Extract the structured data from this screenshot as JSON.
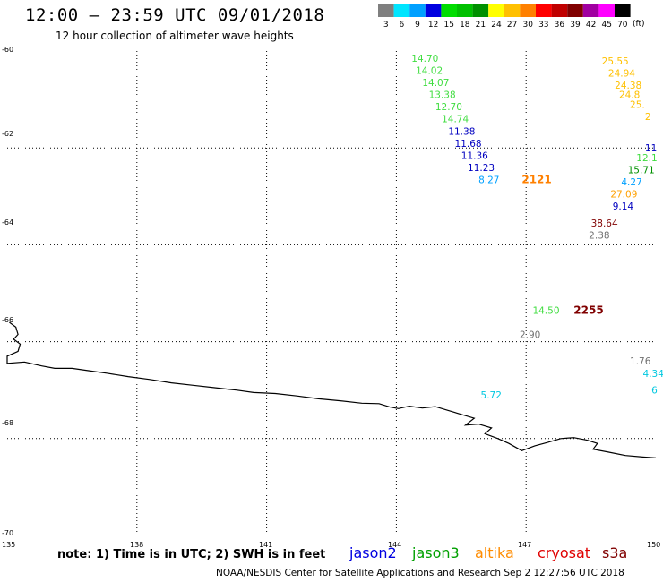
{
  "title": "12:00 – 23:59 UTC 09/01/2018",
  "subtitle": "12 hour collection of altimeter wave heights",
  "note": "note: 1) Time is in UTC; 2) SWH is in feet",
  "credit": "NOAA/NESDIS Center for Satellite Applications and Research   Sep  2 12:27:56 UTC 2018",
  "scale": {
    "unit_label": "(ft)",
    "bins": [
      {
        "label": "3",
        "color": "#7f7f7f"
      },
      {
        "label": "6",
        "color": "#00e5ff"
      },
      {
        "label": "9",
        "color": "#00a0ff"
      },
      {
        "label": "12",
        "color": "#0000e0"
      },
      {
        "label": "15",
        "color": "#00dd00"
      },
      {
        "label": "18",
        "color": "#00c000"
      },
      {
        "label": "21",
        "color": "#009000"
      },
      {
        "label": "24",
        "color": "#ffff00"
      },
      {
        "label": "27",
        "color": "#ffc000"
      },
      {
        "label": "30",
        "color": "#ff8000"
      },
      {
        "label": "33",
        "color": "#ff0000"
      },
      {
        "label": "36",
        "color": "#c00000"
      },
      {
        "label": "39",
        "color": "#800000"
      },
      {
        "label": "42",
        "color": "#a000a0"
      },
      {
        "label": "45",
        "color": "#ff00ff"
      },
      {
        "label": "70",
        "color": "#000000"
      }
    ]
  },
  "satellites": [
    {
      "name": "jason2",
      "color": "#0000e0"
    },
    {
      "name": "jason3",
      "color": "#00a000"
    },
    {
      "name": "altika",
      "color": "#ff8c00"
    },
    {
      "name": "cryosat",
      "color": "#e00000"
    },
    {
      "name": "s3a",
      "color": "#800000"
    }
  ],
  "axes": {
    "lat_labels": [
      "-60",
      "-62",
      "-64",
      "-66",
      "-68",
      "-70"
    ],
    "lon_labels": [
      "135",
      "138",
      "141",
      "144",
      "147",
      "150"
    ],
    "lat_range": [
      -70,
      -60
    ],
    "lon_range": [
      135,
      150
    ]
  },
  "observations": [
    {
      "text": "14.70",
      "lon": 144.35,
      "lat": -60.15,
      "color": "#40dd40"
    },
    {
      "text": "14.02",
      "lon": 144.45,
      "lat": -60.4,
      "color": "#40dd40"
    },
    {
      "text": "14.07",
      "lon": 144.6,
      "lat": -60.65,
      "color": "#40dd40"
    },
    {
      "text": "13.38",
      "lon": 144.75,
      "lat": -60.9,
      "color": "#40dd40"
    },
    {
      "text": "12.70",
      "lon": 144.9,
      "lat": -61.15,
      "color": "#40dd40"
    },
    {
      "text": "14.74",
      "lon": 145.05,
      "lat": -61.4,
      "color": "#40dd40"
    },
    {
      "text": "11.38",
      "lon": 145.2,
      "lat": -61.65,
      "color": "#0000c0"
    },
    {
      "text": "11.68",
      "lon": 145.35,
      "lat": -61.9,
      "color": "#0000c0"
    },
    {
      "text": "11.36",
      "lon": 145.5,
      "lat": -62.15,
      "color": "#0000c0"
    },
    {
      "text": "11.23",
      "lon": 145.65,
      "lat": -62.4,
      "color": "#0000c0"
    },
    {
      "text": "8.27",
      "lon": 145.9,
      "lat": -62.65,
      "color": "#00a0ff"
    },
    {
      "text": "2121",
      "lon": 146.9,
      "lat": -62.65,
      "color": "#ff8000",
      "bold": true
    },
    {
      "text": "25.55",
      "lon": 148.75,
      "lat": -60.2,
      "color": "#ffc000"
    },
    {
      "text": "24.94",
      "lon": 148.9,
      "lat": -60.45,
      "color": "#ffc000"
    },
    {
      "text": "24.38",
      "lon": 149.05,
      "lat": -60.7,
      "color": "#ffc000"
    },
    {
      "text": "24.8",
      "lon": 149.15,
      "lat": -60.9,
      "color": "#ffc000"
    },
    {
      "text": "25.",
      "lon": 149.4,
      "lat": -61.1,
      "color": "#ffc000"
    },
    {
      "text": "2",
      "lon": 149.75,
      "lat": -61.35,
      "color": "#ffc000"
    },
    {
      "text": "11",
      "lon": 149.75,
      "lat": -62.0,
      "color": "#0000c0"
    },
    {
      "text": "12.1",
      "lon": 149.55,
      "lat": -62.2,
      "color": "#40dd40"
    },
    {
      "text": "15.71",
      "lon": 149.35,
      "lat": -62.45,
      "color": "#009000"
    },
    {
      "text": "4.27",
      "lon": 149.2,
      "lat": -62.7,
      "color": "#00a0ff"
    },
    {
      "text": "27.09",
      "lon": 148.95,
      "lat": -62.95,
      "color": "#ffa000"
    },
    {
      "text": "9.14",
      "lon": 149.0,
      "lat": -63.2,
      "color": "#0000c0"
    },
    {
      "text": "38.64",
      "lon": 148.5,
      "lat": -63.55,
      "color": "#800000"
    },
    {
      "text": "2.38",
      "lon": 148.45,
      "lat": -63.8,
      "color": "#707070"
    },
    {
      "text": "14.50",
      "lon": 147.15,
      "lat": -65.35,
      "color": "#40dd40"
    },
    {
      "text": "2255",
      "lon": 148.1,
      "lat": -65.35,
      "color": "#800000",
      "bold": true
    },
    {
      "text": "2.90",
      "lon": 146.85,
      "lat": -65.85,
      "color": "#707070"
    },
    {
      "text": "1.76",
      "lon": 149.4,
      "lat": -66.4,
      "color": "#707070"
    },
    {
      "text": "4.34",
      "lon": 149.7,
      "lat": -66.65,
      "color": "#00c8e0"
    },
    {
      "text": "6",
      "lon": 149.9,
      "lat": -67.0,
      "color": "#00c8e0"
    },
    {
      "text": "5.72",
      "lon": 145.95,
      "lat": -67.1,
      "color": "#00c8e0"
    }
  ],
  "coastline": [
    [
      135.05,
      -65.6
    ],
    [
      135.2,
      -65.7
    ],
    [
      135.25,
      -65.85
    ],
    [
      135.15,
      -65.95
    ],
    [
      135.3,
      -66.05
    ],
    [
      135.25,
      -66.2
    ],
    [
      135.0,
      -66.3
    ],
    [
      135.0,
      -66.45
    ],
    [
      135.4,
      -66.42
    ],
    [
      135.8,
      -66.5
    ],
    [
      136.1,
      -66.55
    ],
    [
      136.5,
      -66.55
    ],
    [
      136.9,
      -66.6
    ],
    [
      137.3,
      -66.65
    ],
    [
      137.8,
      -66.72
    ],
    [
      138.3,
      -66.78
    ],
    [
      138.8,
      -66.85
    ],
    [
      139.3,
      -66.9
    ],
    [
      139.8,
      -66.95
    ],
    [
      140.3,
      -67.0
    ],
    [
      140.7,
      -67.05
    ],
    [
      141.2,
      -67.07
    ],
    [
      141.7,
      -67.12
    ],
    [
      142.2,
      -67.18
    ],
    [
      142.7,
      -67.22
    ],
    [
      143.2,
      -67.27
    ],
    [
      143.6,
      -67.28
    ],
    [
      143.85,
      -67.35
    ],
    [
      144.05,
      -67.38
    ],
    [
      144.3,
      -67.33
    ],
    [
      144.6,
      -67.37
    ],
    [
      144.9,
      -67.34
    ],
    [
      145.2,
      -67.42
    ],
    [
      145.5,
      -67.5
    ],
    [
      145.8,
      -67.58
    ],
    [
      145.6,
      -67.72
    ],
    [
      145.9,
      -67.7
    ],
    [
      146.2,
      -67.78
    ],
    [
      146.05,
      -67.9
    ],
    [
      146.35,
      -68.0
    ],
    [
      146.6,
      -68.1
    ],
    [
      146.9,
      -68.25
    ],
    [
      147.2,
      -68.15
    ],
    [
      147.5,
      -68.08
    ],
    [
      147.8,
      -68.0
    ],
    [
      148.1,
      -67.98
    ],
    [
      148.4,
      -68.03
    ],
    [
      148.65,
      -68.1
    ],
    [
      148.55,
      -68.22
    ],
    [
      148.9,
      -68.28
    ],
    [
      149.3,
      -68.35
    ],
    [
      149.7,
      -68.38
    ],
    [
      150.0,
      -68.4
    ]
  ]
}
